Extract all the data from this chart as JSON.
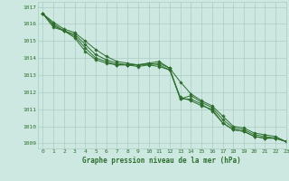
{
  "title": "Graphe pression niveau de la mer (hPa)",
  "background_color": "#cce8e0",
  "grid_color": "#aaccc4",
  "line_color": "#2d6e2d",
  "xlim": [
    -0.5,
    23
  ],
  "ylim": [
    1008.7,
    1017.3
  ],
  "yticks": [
    1009,
    1010,
    1011,
    1012,
    1013,
    1014,
    1015,
    1016,
    1017
  ],
  "xticks": [
    0,
    1,
    2,
    3,
    4,
    5,
    6,
    7,
    8,
    9,
    10,
    11,
    12,
    13,
    14,
    15,
    16,
    17,
    18,
    19,
    20,
    21,
    22,
    23
  ],
  "series": [
    [
      1016.6,
      1016.1,
      1015.7,
      1015.5,
      1015.0,
      1014.5,
      1014.1,
      1013.8,
      1013.7,
      1013.6,
      1013.7,
      1013.6,
      1013.3,
      1011.7,
      1011.5,
      1011.2,
      1011.0,
      1010.2,
      1009.8,
      1009.7,
      1009.4,
      1009.3,
      1009.3,
      1009.1
    ],
    [
      1016.6,
      1016.0,
      1015.6,
      1015.4,
      1014.8,
      1014.2,
      1013.9,
      1013.7,
      1013.6,
      1013.5,
      1013.6,
      1013.5,
      1013.3,
      1011.6,
      1011.6,
      1011.3,
      1010.9,
      1010.2,
      1009.8,
      1009.7,
      1009.4,
      1009.3,
      1009.3,
      1009.1
    ],
    [
      1016.6,
      1015.9,
      1015.6,
      1015.3,
      1014.6,
      1014.0,
      1013.8,
      1013.6,
      1013.6,
      1013.6,
      1013.6,
      1013.7,
      1013.4,
      1011.6,
      1011.8,
      1011.4,
      1011.1,
      1010.4,
      1009.9,
      1009.8,
      1009.5,
      1009.4,
      1009.3,
      1009.1
    ],
    [
      1016.6,
      1015.8,
      1015.6,
      1015.2,
      1014.4,
      1013.9,
      1013.7,
      1013.6,
      1013.6,
      1013.6,
      1013.7,
      1013.8,
      1013.4,
      1012.6,
      1011.9,
      1011.5,
      1011.2,
      1010.6,
      1010.0,
      1009.9,
      1009.6,
      1009.5,
      1009.4,
      1009.1
    ]
  ]
}
